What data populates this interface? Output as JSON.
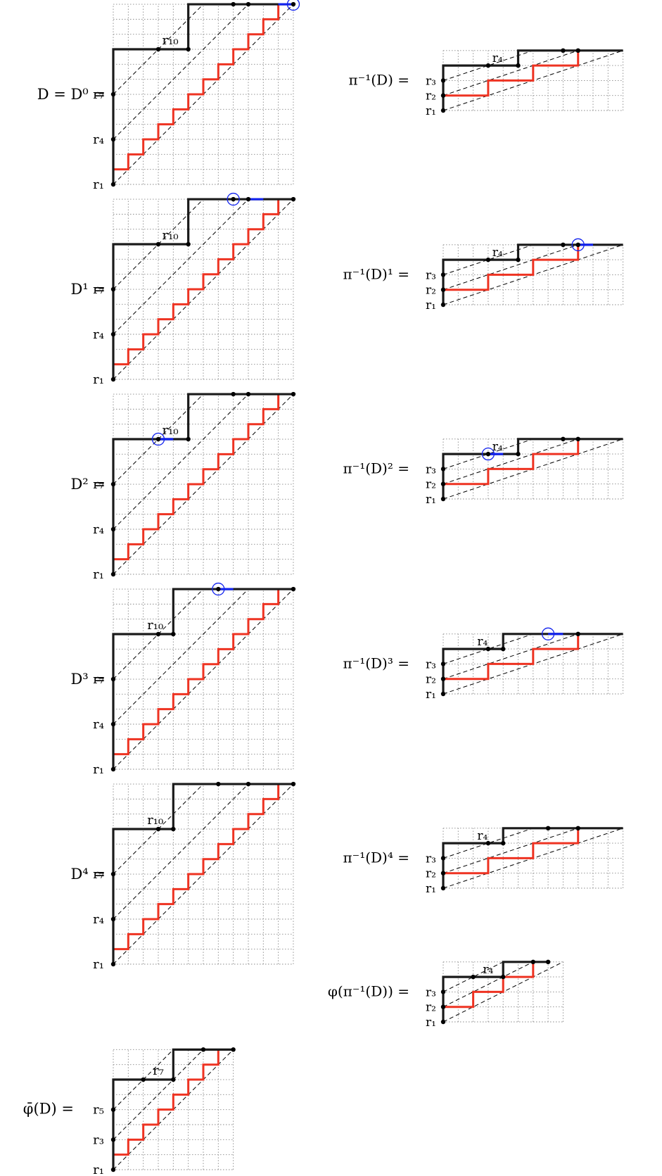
{
  "colors": {
    "path": "#1a1a1a",
    "red": "#ee3322",
    "blue": "#1122ee",
    "grid": "#888888"
  },
  "left": [
    {
      "label": "D = D⁰ =",
      "rows": [
        "r₁",
        "r₄",
        "r₇"
      ],
      "top": "r₁₀"
    },
    {
      "label": "D¹ =",
      "rows": [
        "r₁",
        "r₄",
        "r₇"
      ],
      "top": "r₁₀"
    },
    {
      "label": "D² =",
      "rows": [
        "r₁",
        "r₄",
        "r₇"
      ],
      "top": "r₁₀"
    },
    {
      "label": "D³ =",
      "rows": [
        "r₁",
        "r₄",
        "r₇"
      ],
      "top": "r₁₀"
    },
    {
      "label": "D⁴ =",
      "rows": [
        "r₁",
        "r₄",
        "r₇"
      ],
      "top": "r₁₀"
    },
    {
      "label": "φ̄(D) =",
      "rows": [
        "r₁",
        "r₃",
        "r₅"
      ],
      "top": "r₇"
    }
  ],
  "right": [
    {
      "label": "π⁻¹(D) =",
      "rows": [
        "r₁",
        "r₂",
        "r₃"
      ],
      "top": "r₄"
    },
    {
      "label": "π⁻¹(D)¹ =",
      "rows": [
        "r₁",
        "r₂",
        "r₃"
      ],
      "top": "r₄"
    },
    {
      "label": "π⁻¹(D)² =",
      "rows": [
        "r₁",
        "r₂",
        "r₃"
      ],
      "top": "r₄"
    },
    {
      "label": "π⁻¹(D)³ =",
      "rows": [
        "r₁",
        "r₂",
        "r₃"
      ],
      "top": "r₄"
    },
    {
      "label": "π⁻¹(D)⁴ =",
      "rows": [
        "r₁",
        "r₂",
        "r₃"
      ],
      "top": "r₄"
    },
    {
      "label": "φ(π⁻¹(D)) =",
      "rows": [
        "r₁",
        "r₂",
        "r₃"
      ],
      "top": "r₄"
    }
  ]
}
